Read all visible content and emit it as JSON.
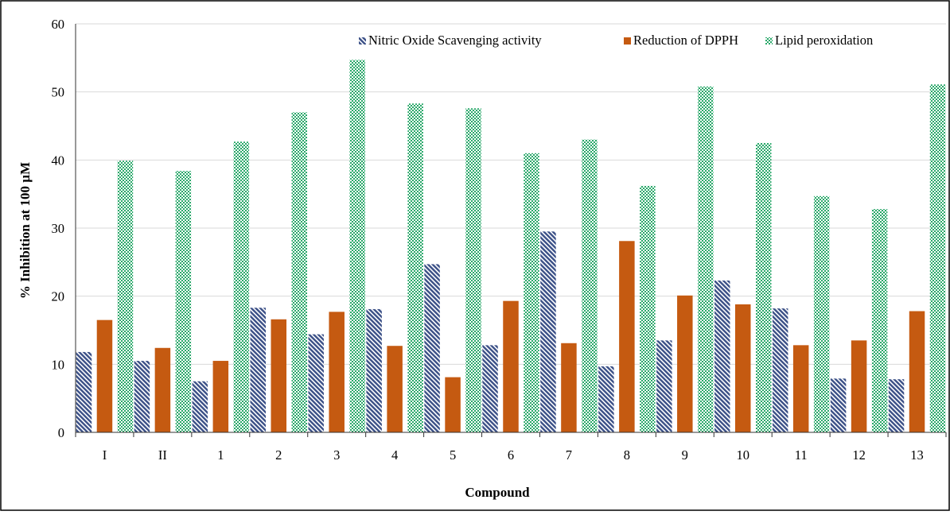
{
  "colors": {
    "nitric": "#3a4f86",
    "dpph": "#c55a11",
    "lipid": "#2aa86a",
    "grid": "#d9d9d9",
    "axis": "#333333",
    "frame": "#000000"
  },
  "chart_data": {
    "type": "bar",
    "title": "",
    "xlabel": "Compound",
    "ylabel": "% Inhibition at 100 µM",
    "ylim": [
      0,
      60
    ],
    "yticks": [
      0,
      10,
      20,
      30,
      40,
      50,
      60
    ],
    "grid": true,
    "legend_position": "top-right",
    "categories": [
      "I",
      "II",
      "1",
      "2",
      "3",
      "4",
      "5",
      "6",
      "7",
      "8",
      "9",
      "10",
      "11",
      "12",
      "13"
    ],
    "series": [
      {
        "name": "Nitric Oxide Scavenging activity",
        "pattern": "diagonal-hatch",
        "values": [
          11.8,
          10.5,
          7.5,
          18.3,
          14.4,
          18.1,
          24.7,
          12.8,
          29.5,
          9.7,
          13.5,
          22.3,
          18.2,
          7.9,
          7.8
        ]
      },
      {
        "name": "Reduction of DPPH",
        "pattern": "solid",
        "values": [
          16.5,
          12.4,
          10.5,
          16.6,
          17.7,
          12.7,
          8.1,
          19.3,
          13.1,
          28.1,
          20.1,
          18.8,
          12.8,
          13.5,
          17.8
        ]
      },
      {
        "name": "Lipid peroxidation",
        "pattern": "checker",
        "values": [
          39.9,
          38.4,
          42.7,
          47.0,
          54.7,
          48.3,
          47.6,
          41.0,
          43.0,
          36.2,
          50.8,
          42.5,
          34.7,
          32.8,
          51.1
        ]
      }
    ]
  }
}
